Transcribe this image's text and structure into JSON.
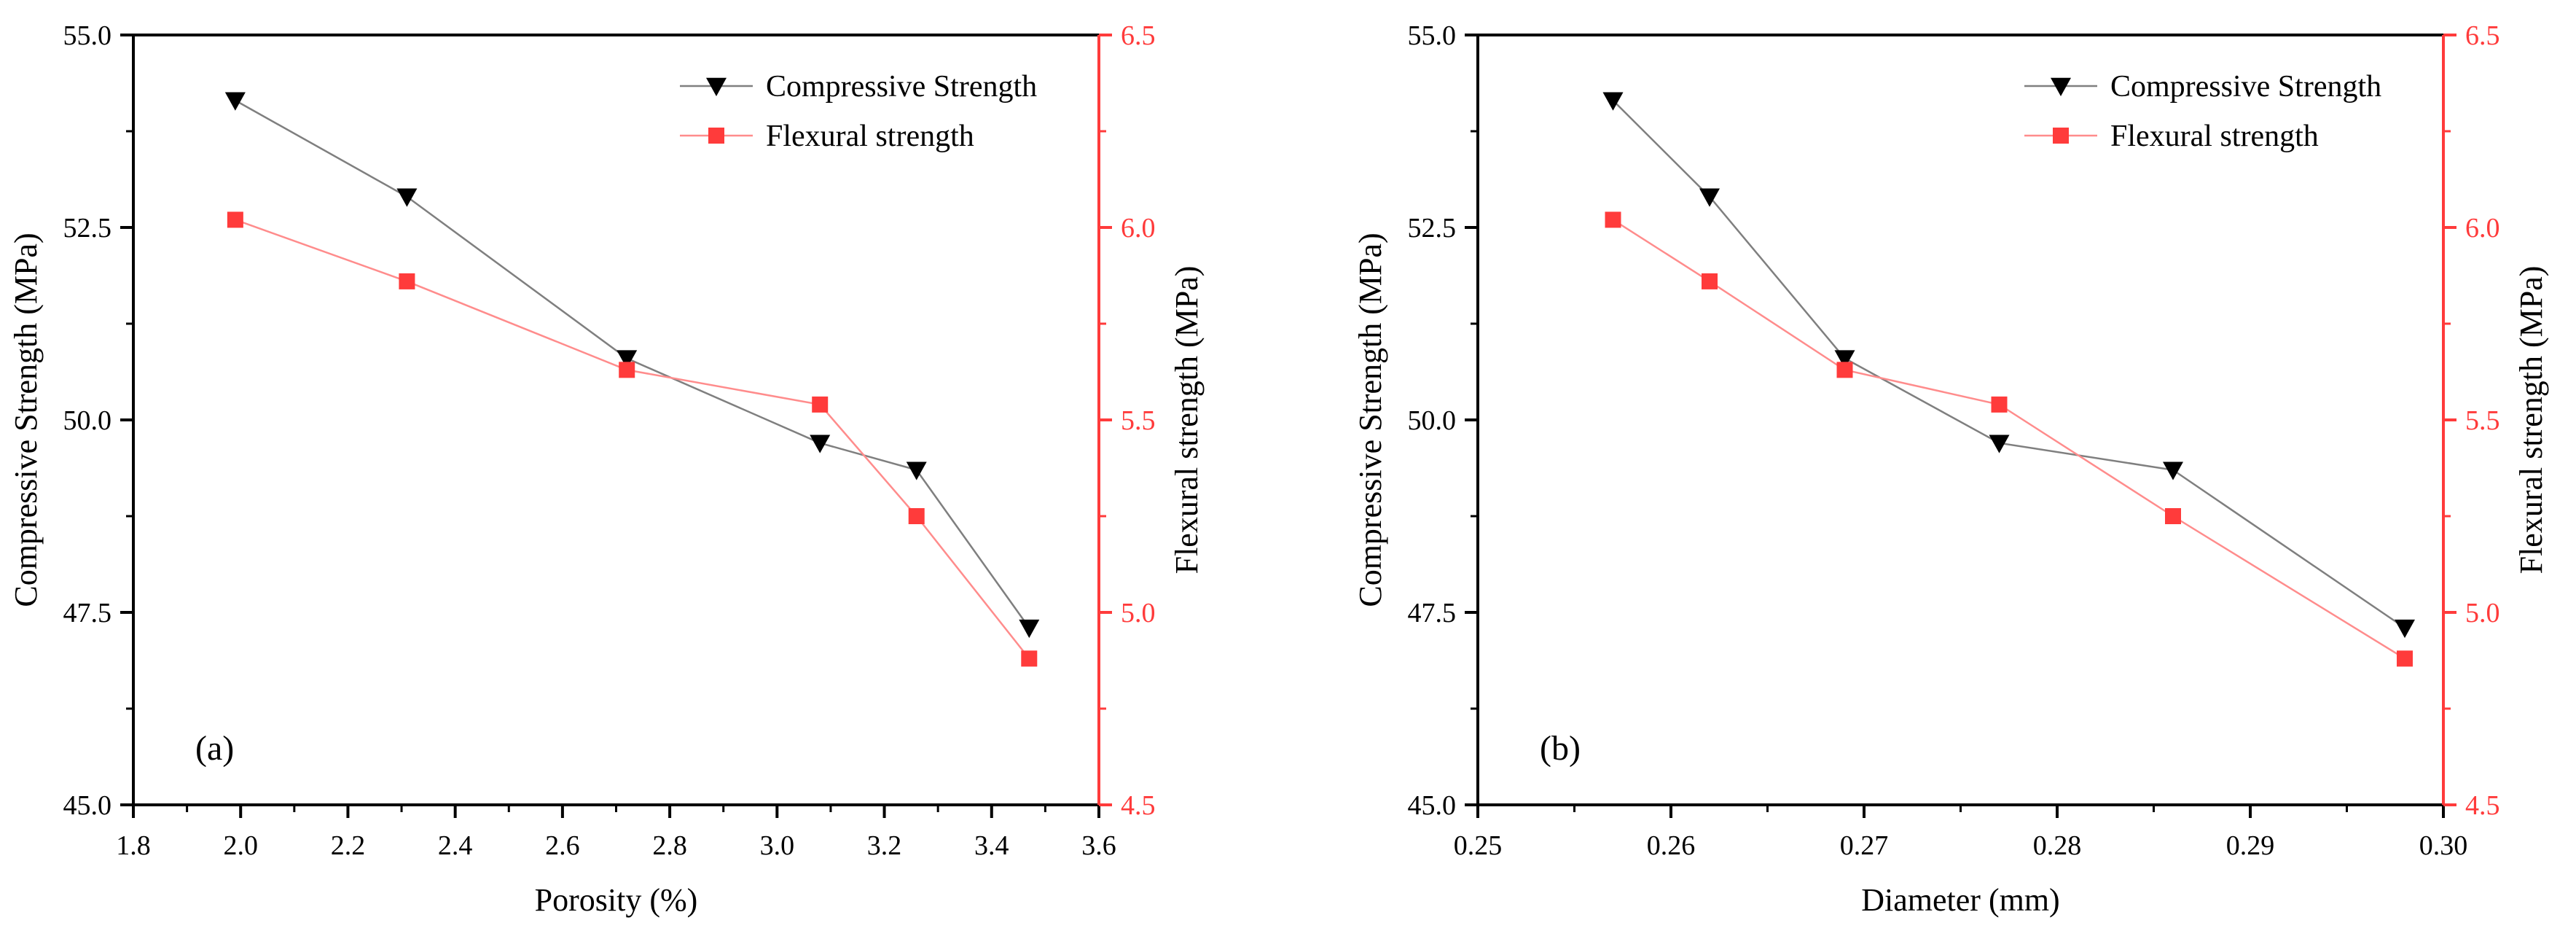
{
  "colors": {
    "compressive": "#000000",
    "flexural": "#ff3b3b",
    "compressive_line": "#7f7f7f",
    "flexural_line": "#ff8c8c",
    "axis": "#000000"
  },
  "chart_data": [
    {
      "type": "line",
      "panel_label": "(a)",
      "xlabel": "Porosity (%)",
      "ylabel_left": "Compressive Strength (MPa)",
      "ylabel_right": "Flexural strength (MPa)",
      "xlim": [
        1.8,
        3.6
      ],
      "ylim_left": [
        45.0,
        55.0
      ],
      "ylim_right": [
        4.5,
        6.5
      ],
      "xticks": [
        "1.8",
        "2.0",
        "2.2",
        "2.4",
        "2.6",
        "2.8",
        "3.0",
        "3.2",
        "3.4",
        "3.6"
      ],
      "yticks_left": [
        "45.0",
        "47.5",
        "50.0",
        "52.5",
        "55.0"
      ],
      "yticks_right": [
        "4.5",
        "5.0",
        "5.5",
        "6.0",
        "6.5"
      ],
      "legend_position": "top-right",
      "series": [
        {
          "name": "Compressive Strength",
          "axis": "left",
          "marker": "triangle-down",
          "x": [
            1.99,
            2.31,
            2.72,
            3.08,
            3.26,
            3.47
          ],
          "values": [
            54.15,
            52.9,
            50.8,
            49.7,
            49.35,
            47.3
          ]
        },
        {
          "name": "Flexural strength",
          "axis": "right",
          "marker": "square",
          "x": [
            1.99,
            2.31,
            2.72,
            3.08,
            3.26,
            3.47
          ],
          "values": [
            6.02,
            5.86,
            5.63,
            5.54,
            5.25,
            4.88
          ]
        }
      ]
    },
    {
      "type": "line",
      "panel_label": "(b)",
      "xlabel": "Diameter (mm)",
      "ylabel_left": "Compressive Strength (MPa)",
      "ylabel_right": "Flexural strength (MPa)",
      "xlim": [
        0.25,
        0.3
      ],
      "ylim_left": [
        45.0,
        55.0
      ],
      "ylim_right": [
        4.5,
        6.5
      ],
      "xticks": [
        "0.25",
        "0.26",
        "0.27",
        "0.28",
        "0.29",
        "0.30"
      ],
      "yticks_left": [
        "45.0",
        "47.5",
        "50.0",
        "52.5",
        "55.0"
      ],
      "yticks_right": [
        "4.5",
        "5.0",
        "5.5",
        "6.0",
        "6.5"
      ],
      "legend_position": "top-right",
      "series": [
        {
          "name": "Compressive Strength",
          "axis": "left",
          "marker": "triangle-down",
          "x": [
            0.257,
            0.262,
            0.269,
            0.277,
            0.286,
            0.298
          ],
          "values": [
            54.15,
            52.9,
            50.8,
            49.7,
            49.35,
            47.3
          ]
        },
        {
          "name": "Flexural strength",
          "axis": "right",
          "marker": "square",
          "x": [
            0.257,
            0.262,
            0.269,
            0.277,
            0.286,
            0.298
          ],
          "values": [
            6.02,
            5.86,
            5.63,
            5.54,
            5.25,
            4.88
          ]
        }
      ]
    }
  ]
}
